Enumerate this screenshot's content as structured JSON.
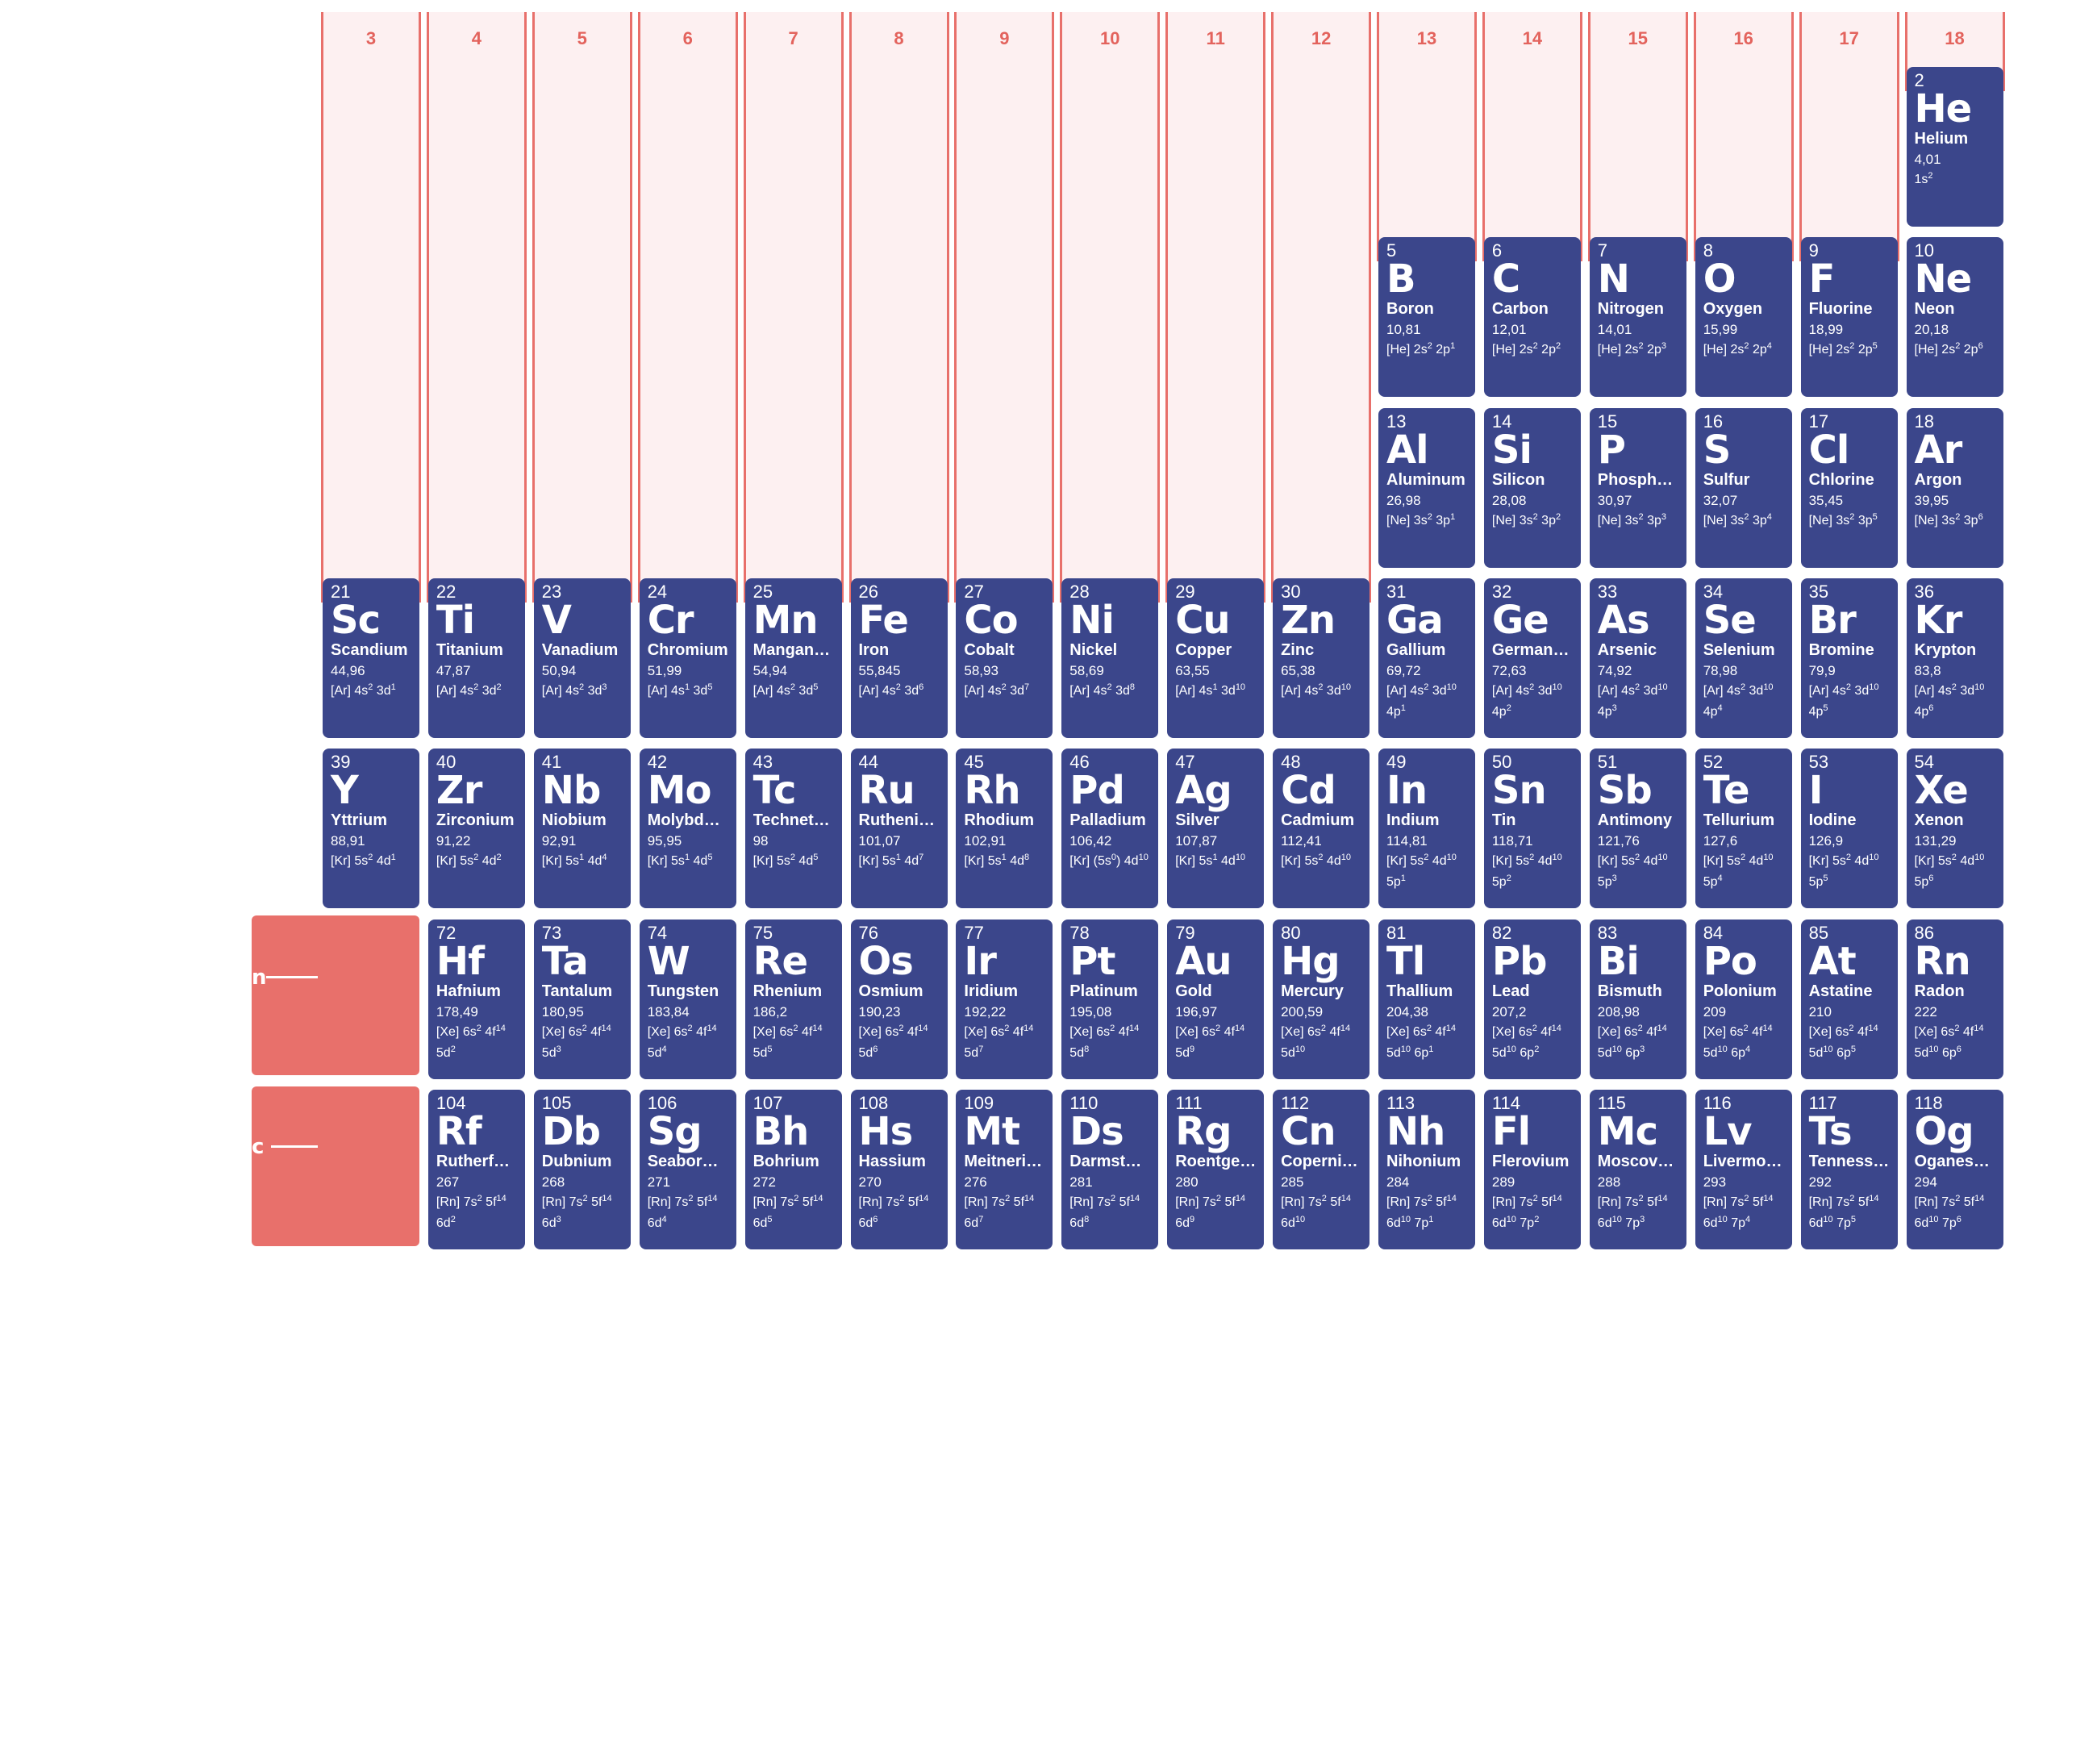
{
  "colors": {
    "cell_bg": "#3b468b",
    "band_bg": "#fdf0f1",
    "band_border": "#e8706b",
    "group_number": "#e3635d",
    "lanthanide_block": "#e8706b"
  },
  "groups": [
    "3",
    "4",
    "5",
    "6",
    "7",
    "8",
    "9",
    "10",
    "11",
    "12",
    "13",
    "14",
    "15",
    "16",
    "17",
    "18"
  ],
  "row_labels": {
    "lanthanides_fragment": "n",
    "actinides_fragment": "c"
  },
  "elements": [
    {
      "n": "2",
      "s": "He",
      "name": "Helium",
      "mass": "4,01",
      "cfg": "1s^2",
      "g": 18,
      "r": 0
    },
    {
      "n": "5",
      "s": "B",
      "name": "Boron",
      "mass": "10,81",
      "cfg": "[He] 2s^2 2p^1",
      "g": 13,
      "r": 1
    },
    {
      "n": "6",
      "s": "C",
      "name": "Carbon",
      "mass": "12,01",
      "cfg": "[He] 2s^2 2p^2",
      "g": 14,
      "r": 1
    },
    {
      "n": "7",
      "s": "N",
      "name": "Nitrogen",
      "mass": "14,01",
      "cfg": "[He] 2s^2 2p^3",
      "g": 15,
      "r": 1
    },
    {
      "n": "8",
      "s": "O",
      "name": "Oxygen",
      "mass": "15,99",
      "cfg": "[He] 2s^2 2p^4",
      "g": 16,
      "r": 1
    },
    {
      "n": "9",
      "s": "F",
      "name": "Fluorine",
      "mass": "18,99",
      "cfg": "[He] 2s^2 2p^5",
      "g": 17,
      "r": 1
    },
    {
      "n": "10",
      "s": "Ne",
      "name": "Neon",
      "mass": "20,18",
      "cfg": "[He] 2s^2 2p^6",
      "g": 18,
      "r": 1
    },
    {
      "n": "13",
      "s": "Al",
      "name": "Aluminum",
      "mass": "26,98",
      "cfg": "[Ne] 3s^2 3p^1",
      "g": 13,
      "r": 2
    },
    {
      "n": "14",
      "s": "Si",
      "name": "Silicon",
      "mass": "28,08",
      "cfg": "[Ne] 3s^2 3p^2",
      "g": 14,
      "r": 2
    },
    {
      "n": "15",
      "s": "P",
      "name": "Phosphor…",
      "mass": "30,97",
      "cfg": "[Ne] 3s^2 3p^3",
      "g": 15,
      "r": 2
    },
    {
      "n": "16",
      "s": "S",
      "name": "Sulfur",
      "mass": "32,07",
      "cfg": "[Ne] 3s^2 3p^4",
      "g": 16,
      "r": 2
    },
    {
      "n": "17",
      "s": "Cl",
      "name": "Chlorine",
      "mass": "35,45",
      "cfg": "[Ne] 3s^2 3p^5",
      "g": 17,
      "r": 2
    },
    {
      "n": "18",
      "s": "Ar",
      "name": "Argon",
      "mass": "39,95",
      "cfg": "[Ne] 3s^2 3p^6",
      "g": 18,
      "r": 2
    },
    {
      "n": "21",
      "s": "Sc",
      "name": "Scandium",
      "mass": "44,96",
      "cfg": "[Ar] 4s^2 3d^1",
      "g": 3,
      "r": 3
    },
    {
      "n": "22",
      "s": "Ti",
      "name": "Titanium",
      "mass": "47,87",
      "cfg": "[Ar] 4s^2 3d^2",
      "g": 4,
      "r": 3
    },
    {
      "n": "23",
      "s": "V",
      "name": "Vanadium",
      "mass": "50,94",
      "cfg": "[Ar] 4s^2 3d^3",
      "g": 5,
      "r": 3
    },
    {
      "n": "24",
      "s": "Cr",
      "name": "Chromium",
      "mass": "51,99",
      "cfg": "[Ar] 4s^1 3d^5",
      "g": 6,
      "r": 3
    },
    {
      "n": "25",
      "s": "Mn",
      "name": "Manganese",
      "mass": "54,94",
      "cfg": "[Ar] 4s^2 3d^5",
      "g": 7,
      "r": 3
    },
    {
      "n": "26",
      "s": "Fe",
      "name": "Iron",
      "mass": "55,845",
      "cfg": "[Ar] 4s^2 3d^6",
      "g": 8,
      "r": 3
    },
    {
      "n": "27",
      "s": "Co",
      "name": "Cobalt",
      "mass": "58,93",
      "cfg": "[Ar] 4s^2 3d^7",
      "g": 9,
      "r": 3
    },
    {
      "n": "28",
      "s": "Ni",
      "name": "Nickel",
      "mass": "58,69",
      "cfg": "[Ar] 4s^2 3d^8",
      "g": 10,
      "r": 3
    },
    {
      "n": "29",
      "s": "Cu",
      "name": "Copper",
      "mass": "63,55",
      "cfg": "[Ar] 4s^1 3d^10",
      "g": 11,
      "r": 3
    },
    {
      "n": "30",
      "s": "Zn",
      "name": "Zinc",
      "mass": "65,38",
      "cfg": "[Ar] 4s^2 3d^10",
      "g": 12,
      "r": 3
    },
    {
      "n": "31",
      "s": "Ga",
      "name": "Gallium",
      "mass": "69,72",
      "cfg": "[Ar] 4s^2 3d^10 4p^1",
      "g": 13,
      "r": 3
    },
    {
      "n": "32",
      "s": "Ge",
      "name": "Germanium",
      "mass": "72,63",
      "cfg": "[Ar] 4s^2 3d^10 4p^2",
      "g": 14,
      "r": 3
    },
    {
      "n": "33",
      "s": "As",
      "name": "Arsenic",
      "mass": "74,92",
      "cfg": "[Ar] 4s^2 3d^10 4p^3",
      "g": 15,
      "r": 3
    },
    {
      "n": "34",
      "s": "Se",
      "name": "Selenium",
      "mass": "78,98",
      "cfg": "[Ar] 4s^2 3d^10 4p^4",
      "g": 16,
      "r": 3
    },
    {
      "n": "35",
      "s": "Br",
      "name": "Bromine",
      "mass": "79,9",
      "cfg": "[Ar] 4s^2 3d^10 4p^5",
      "g": 17,
      "r": 3
    },
    {
      "n": "36",
      "s": "Kr",
      "name": "Krypton",
      "mass": "83,8",
      "cfg": "[Ar] 4s^2 3d^10 4p^6",
      "g": 18,
      "r": 3
    },
    {
      "n": "39",
      "s": "Y",
      "name": "Yttrium",
      "mass": "88,91",
      "cfg": "[Kr] 5s^2 4d^1",
      "g": 3,
      "r": 4
    },
    {
      "n": "40",
      "s": "Zr",
      "name": "Zirconium",
      "mass": "91,22",
      "cfg": "[Kr] 5s^2 4d^2",
      "g": 4,
      "r": 4
    },
    {
      "n": "41",
      "s": "Nb",
      "name": "Niobium",
      "mass": "92,91",
      "cfg": "[Kr] 5s^1 4d^4",
      "g": 5,
      "r": 4
    },
    {
      "n": "42",
      "s": "Mo",
      "name": "Molybdenum",
      "mass": "95,95",
      "cfg": "[Kr] 5s^1 4d^5",
      "g": 6,
      "r": 4
    },
    {
      "n": "43",
      "s": "Tc",
      "name": "Techneti…",
      "mass": "98",
      "cfg": "[Kr] 5s^2 4d^5",
      "g": 7,
      "r": 4
    },
    {
      "n": "44",
      "s": "Ru",
      "name": "Rutheniu…",
      "mass": "101,07",
      "cfg": "[Kr] 5s^1 4d^7",
      "g": 8,
      "r": 4
    },
    {
      "n": "45",
      "s": "Rh",
      "name": "Rhodium",
      "mass": "102,91",
      "cfg": "[Kr] 5s^1 4d^8",
      "g": 9,
      "r": 4
    },
    {
      "n": "46",
      "s": "Pd",
      "name": "Palladium",
      "mass": "106,42",
      "cfg": "[Kr] (5s^0) 4d^10",
      "g": 10,
      "r": 4
    },
    {
      "n": "47",
      "s": "Ag",
      "name": "Silver",
      "mass": "107,87",
      "cfg": "[Kr] 5s^1 4d^10",
      "g": 11,
      "r": 4
    },
    {
      "n": "48",
      "s": "Cd",
      "name": "Cadmium",
      "mass": "112,41",
      "cfg": "[Kr] 5s^2 4d^10",
      "g": 12,
      "r": 4
    },
    {
      "n": "49",
      "s": "In",
      "name": "Indium",
      "mass": "114,81",
      "cfg": "[Kr] 5s^2 4d^10 5p^1",
      "g": 13,
      "r": 4
    },
    {
      "n": "50",
      "s": "Sn",
      "name": "Tin",
      "mass": "118,71",
      "cfg": "[Kr] 5s^2 4d^10 5p^2",
      "g": 14,
      "r": 4
    },
    {
      "n": "51",
      "s": "Sb",
      "name": "Antimony",
      "mass": "121,76",
      "cfg": "[Kr] 5s^2 4d^10 5p^3",
      "g": 15,
      "r": 4
    },
    {
      "n": "52",
      "s": "Te",
      "name": "Tellurium",
      "mass": "127,6",
      "cfg": "[Kr] 5s^2 4d^10 5p^4",
      "g": 16,
      "r": 4
    },
    {
      "n": "53",
      "s": "I",
      "name": "Iodine",
      "mass": "126,9",
      "cfg": "[Kr] 5s^2 4d^10 5p^5",
      "g": 17,
      "r": 4
    },
    {
      "n": "54",
      "s": "Xe",
      "name": "Xenon",
      "mass": "131,29",
      "cfg": "[Kr] 5s^2 4d^10 5p^6",
      "g": 18,
      "r": 4
    },
    {
      "n": "72",
      "s": "Hf",
      "name": "Hafnium",
      "mass": "178,49",
      "cfg": "[Xe] 6s^2 4f^14 5d^2",
      "g": 4,
      "r": 5
    },
    {
      "n": "73",
      "s": "Ta",
      "name": "Tantalum",
      "mass": "180,95",
      "cfg": "[Xe] 6s^2 4f^14 5d^3",
      "g": 5,
      "r": 5
    },
    {
      "n": "74",
      "s": "W",
      "name": "Tungsten",
      "mass": "183,84",
      "cfg": "[Xe] 6s^2 4f^14 5d^4",
      "g": 6,
      "r": 5
    },
    {
      "n": "75",
      "s": "Re",
      "name": "Rhenium",
      "mass": "186,2",
      "cfg": "[Xe] 6s^2 4f^14 5d^5",
      "g": 7,
      "r": 5
    },
    {
      "n": "76",
      "s": "Os",
      "name": "Osmium",
      "mass": "190,23",
      "cfg": "[Xe] 6s^2 4f^14 5d^6",
      "g": 8,
      "r": 5
    },
    {
      "n": "77",
      "s": "Ir",
      "name": "Iridium",
      "mass": "192,22",
      "cfg": "[Xe] 6s^2 4f^14 5d^7",
      "g": 9,
      "r": 5
    },
    {
      "n": "78",
      "s": "Pt",
      "name": "Platinum",
      "mass": "195,08",
      "cfg": "[Xe] 6s^2 4f^14 5d^8",
      "g": 10,
      "r": 5
    },
    {
      "n": "79",
      "s": "Au",
      "name": "Gold",
      "mass": "196,97",
      "cfg": "[Xe] 6s^2 4f^14 5d^9",
      "g": 11,
      "r": 5
    },
    {
      "n": "80",
      "s": "Hg",
      "name": "Mercury",
      "mass": "200,59",
      "cfg": "[Xe] 6s^2 4f^14 5d^10",
      "g": 12,
      "r": 5
    },
    {
      "n": "81",
      "s": "Tl",
      "name": "Thallium",
      "mass": "204,38",
      "cfg": "[Xe] 6s^2 4f^14 5d^10 6p^1",
      "g": 13,
      "r": 5
    },
    {
      "n": "82",
      "s": "Pb",
      "name": "Lead",
      "mass": "207,2",
      "cfg": "[Xe] 6s^2 4f^14 5d^10 6p^2",
      "g": 14,
      "r": 5
    },
    {
      "n": "83",
      "s": "Bi",
      "name": "Bismuth",
      "mass": "208,98",
      "cfg": "[Xe] 6s^2 4f^14 5d^10 6p^3",
      "g": 15,
      "r": 5
    },
    {
      "n": "84",
      "s": "Po",
      "name": "Polonium",
      "mass": "209",
      "cfg": "[Xe] 6s^2 4f^14 5d^10 6p^4",
      "g": 16,
      "r": 5
    },
    {
      "n": "85",
      "s": "At",
      "name": "Astatine",
      "mass": "210",
      "cfg": "[Xe] 6s^2 4f^14 5d^10 6p^5",
      "g": 17,
      "r": 5
    },
    {
      "n": "86",
      "s": "Rn",
      "name": "Radon",
      "mass": "222",
      "cfg": "[Xe] 6s^2 4f^14 5d^10 6p^6",
      "g": 18,
      "r": 5
    },
    {
      "n": "104",
      "s": "Rf",
      "name": "Rutherfordi…",
      "mass": "267",
      "cfg": "[Rn] 7s^2 5f^14 6d^2",
      "g": 4,
      "r": 6
    },
    {
      "n": "105",
      "s": "Db",
      "name": "Dubnium",
      "mass": "268",
      "cfg": "[Rn] 7s^2 5f^14 6d^3",
      "g": 5,
      "r": 6
    },
    {
      "n": "106",
      "s": "Sg",
      "name": "Seaborgi…",
      "mass": "271",
      "cfg": "[Rn] 7s^2 5f^14 6d^4",
      "g": 6,
      "r": 6
    },
    {
      "n": "107",
      "s": "Bh",
      "name": "Bohrium",
      "mass": "272",
      "cfg": "[Rn] 7s^2 5f^14 6d^5",
      "g": 7,
      "r": 6
    },
    {
      "n": "108",
      "s": "Hs",
      "name": "Hassium",
      "mass": "270",
      "cfg": "[Rn] 7s^2 5f^14 6d^6",
      "g": 8,
      "r": 6
    },
    {
      "n": "109",
      "s": "Mt",
      "name": "Meitneri…",
      "mass": "276",
      "cfg": "[Rn] 7s^2 5f^14 6d^7",
      "g": 9,
      "r": 6
    },
    {
      "n": "110",
      "s": "Ds",
      "name": "Darmstadti…",
      "mass": "281",
      "cfg": "[Rn] 7s^2 5f^14 6d^8",
      "g": 10,
      "r": 6
    },
    {
      "n": "111",
      "s": "Rg",
      "name": "Roentgenti…",
      "mass": "280",
      "cfg": "[Rn] 7s^2 5f^14 6d^9",
      "g": 11,
      "r": 6
    },
    {
      "n": "112",
      "s": "Cn",
      "name": "Copernicium",
      "mass": "285",
      "cfg": "[Rn] 7s^2 5f^14 6d^10",
      "g": 12,
      "r": 6
    },
    {
      "n": "113",
      "s": "Nh",
      "name": "Nihonium",
      "mass": "284",
      "cfg": "[Rn] 7s^2 5f^14 6d^10 7p^1",
      "g": 13,
      "r": 6
    },
    {
      "n": "114",
      "s": "Fl",
      "name": "Flerovium",
      "mass": "289",
      "cfg": "[Rn] 7s^2 5f^14 6d^10 7p^2",
      "g": 14,
      "r": 6
    },
    {
      "n": "115",
      "s": "Mc",
      "name": "Moscovi…",
      "mass": "288",
      "cfg": "[Rn] 7s^2 5f^14 6d^10 7p^3",
      "g": 15,
      "r": 6
    },
    {
      "n": "116",
      "s": "Lv",
      "name": "Livermorium",
      "mass": "293",
      "cfg": "[Rn] 7s^2 5f^14 6d^10 7p^4",
      "g": 16,
      "r": 6
    },
    {
      "n": "117",
      "s": "Ts",
      "name": "Tennessi…",
      "mass": "292",
      "cfg": "[Rn] 7s^2 5f^14 6d^10 7p^5",
      "g": 17,
      "r": 6
    },
    {
      "n": "118",
      "s": "Og",
      "name": "Oganesson",
      "mass": "294",
      "cfg": "[Rn] 7s^2 5f^14 6d^10 7p^6",
      "g": 18,
      "r": 6
    }
  ]
}
